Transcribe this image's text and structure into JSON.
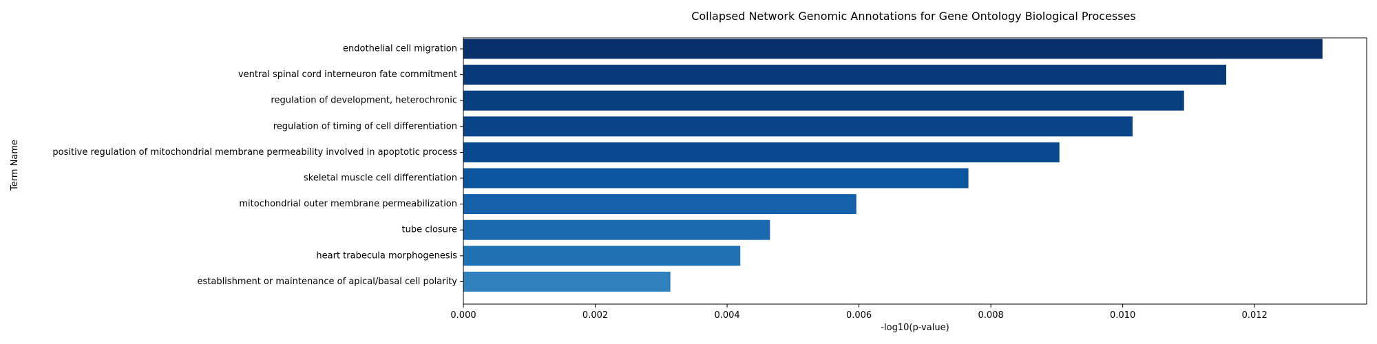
{
  "chart_data": {
    "type": "bar",
    "orientation": "horizontal",
    "title": "Collapsed Network Genomic Annotations for Gene Ontology Biological Processes",
    "xlabel": "-log10(p-value)",
    "ylabel": "Term Name",
    "xlim": [
      0,
      0.0137
    ],
    "xticks": [
      0.0,
      0.002,
      0.004,
      0.006,
      0.008,
      0.01,
      0.012
    ],
    "xtick_labels": [
      "0.000",
      "0.002",
      "0.004",
      "0.006",
      "0.008",
      "0.010",
      "0.012"
    ],
    "grid": false,
    "categories": [
      "endothelial cell migration",
      "ventral spinal cord interneuron fate commitment",
      "regulation of development, heterochronic",
      "regulation of timing of cell differentiation",
      "positive regulation of mitochondrial membrane permeability involved in apoptotic process",
      "skeletal muscle cell differentiation",
      "mitochondrial outer membrane permeabilization",
      "tube closure",
      "heart trabecula morphogenesis",
      "establishment or maintenance of apical/basal cell polarity"
    ],
    "values": [
      0.01303,
      0.01157,
      0.01093,
      0.01015,
      0.00904,
      0.00766,
      0.00596,
      0.00465,
      0.0042,
      0.00314
    ],
    "colors": [
      "#08306b",
      "#083a7a",
      "#08407f",
      "#084487",
      "#08498f",
      "#0b559f",
      "#1561a9",
      "#1b69af",
      "#2171b5",
      "#3080bd"
    ]
  }
}
